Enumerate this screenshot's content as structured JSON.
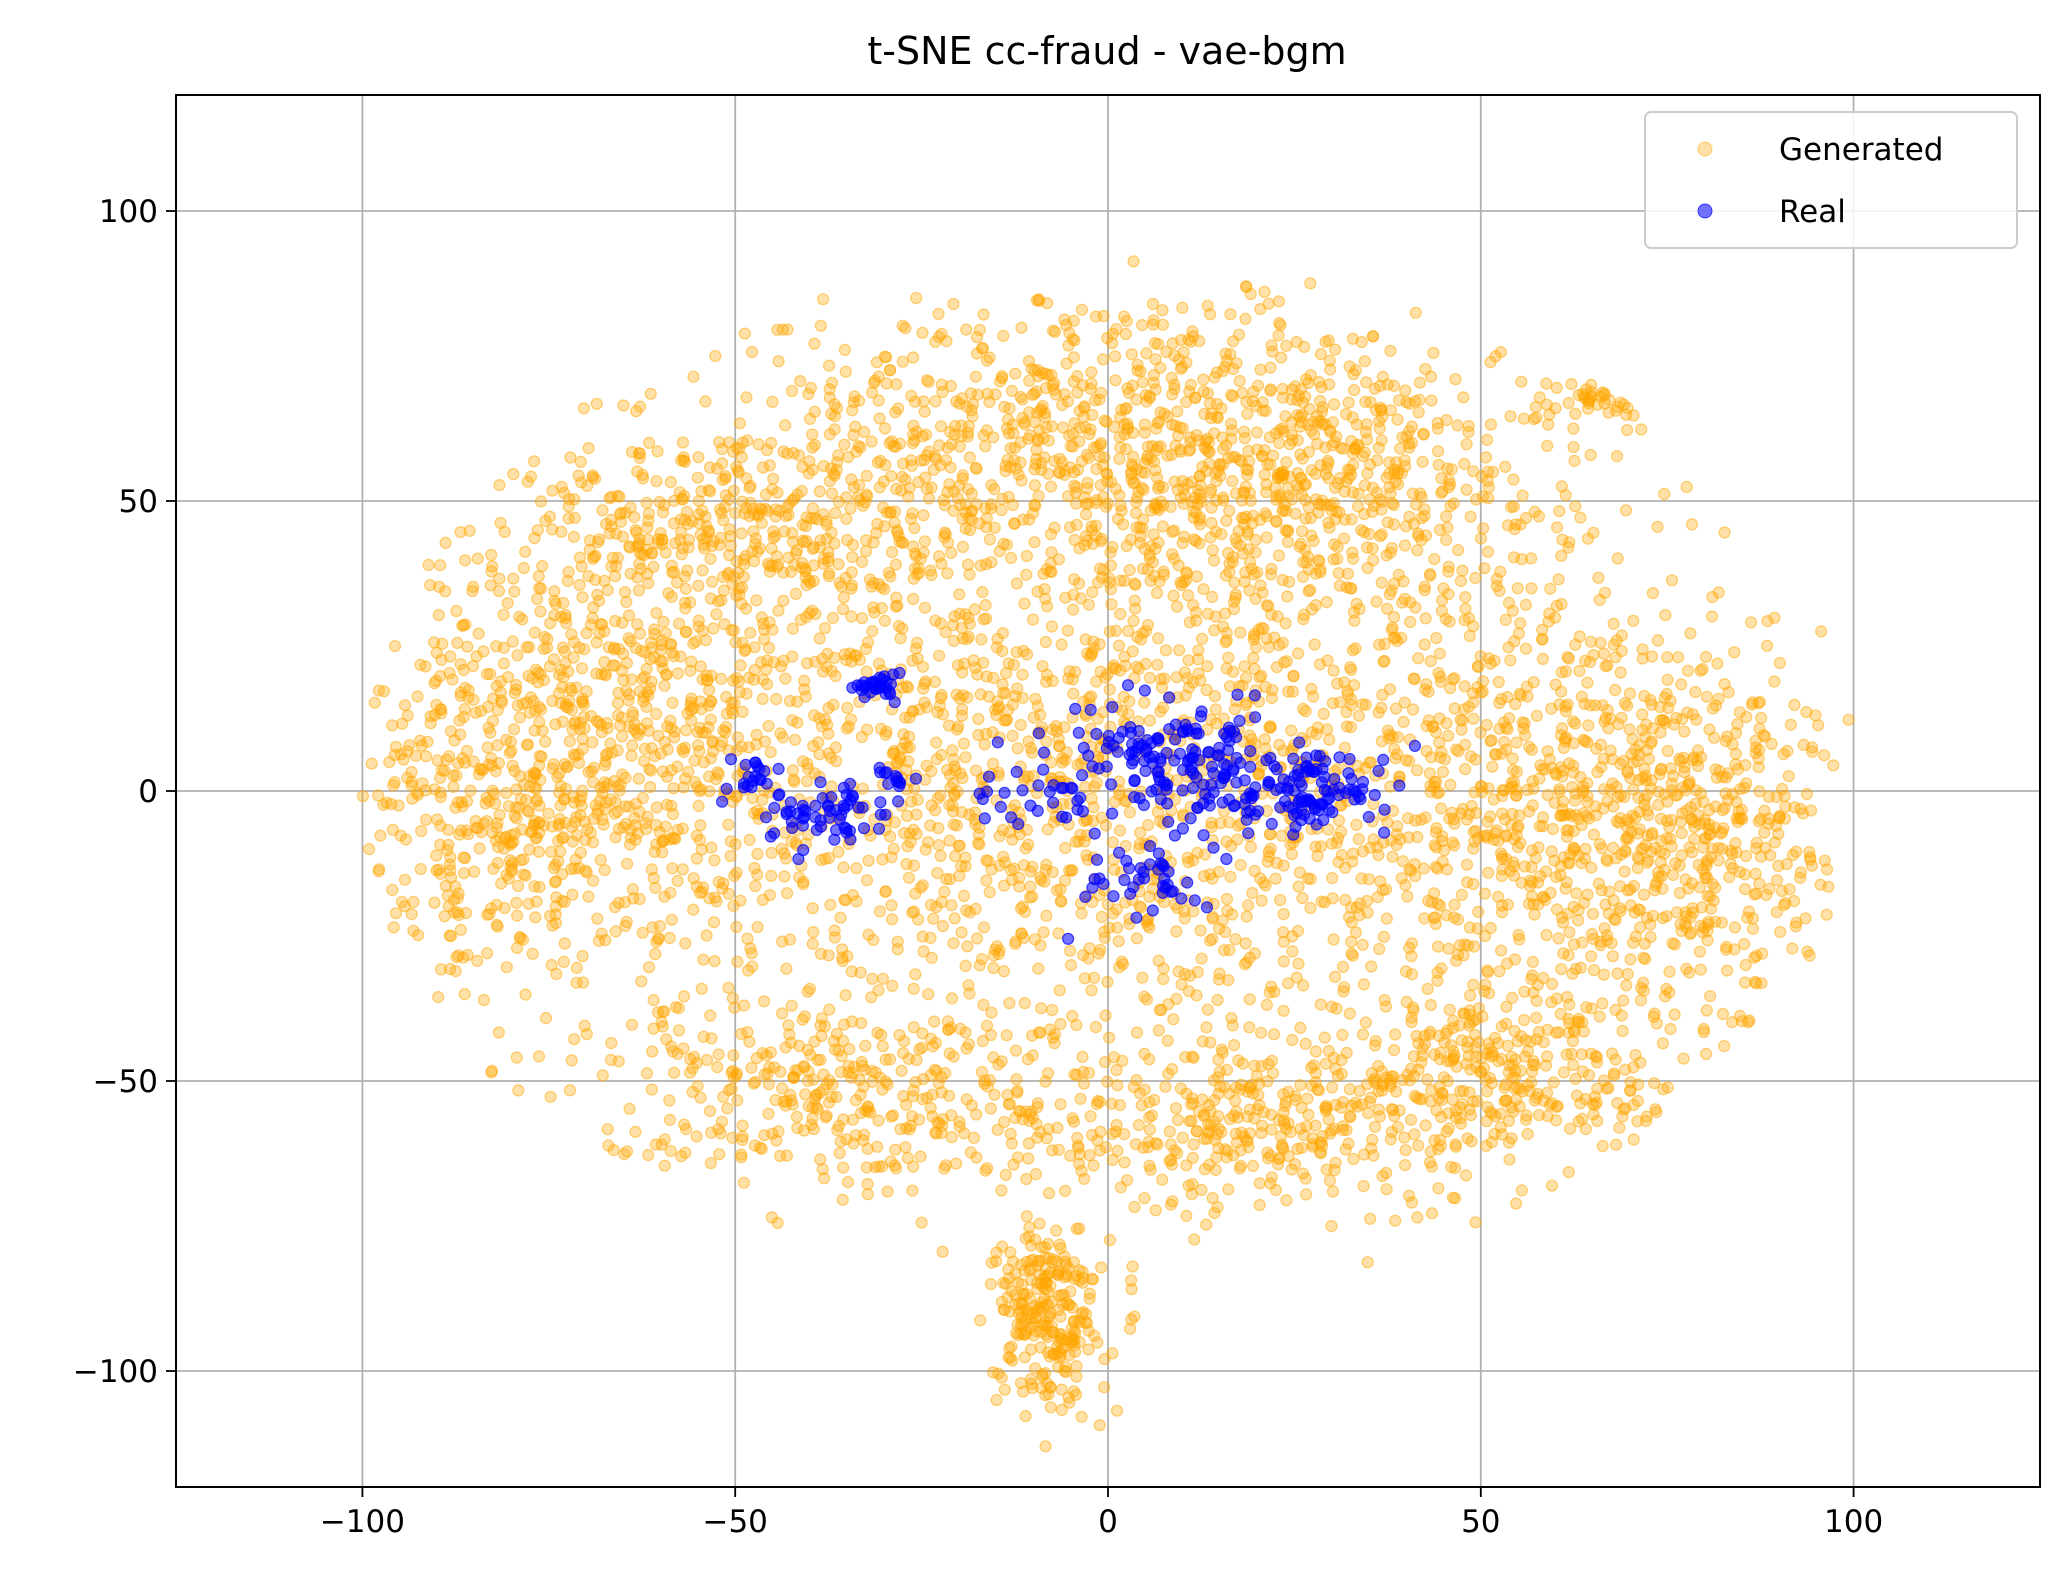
{
  "chart_data": {
    "type": "scatter",
    "title": "t-SNE cc-fraud - vae-bgm",
    "xlabel": "",
    "ylabel": "",
    "xlim": [
      -125,
      125
    ],
    "ylim": [
      -120,
      120
    ],
    "x_ticks": [
      -100,
      -50,
      0,
      50,
      100
    ],
    "x_tick_labels": [
      "−100",
      "−50",
      "0",
      "50",
      "100"
    ],
    "y_ticks": [
      -100,
      -50,
      0,
      50,
      100
    ],
    "y_tick_labels": [
      "−100",
      "−50",
      "0",
      "50",
      "100"
    ],
    "grid": true,
    "legend_position": "top-right",
    "series": [
      {
        "name": "Generated",
        "color": "#FFA500",
        "alpha": 0.35,
        "clusters": [
          {
            "cx": 0,
            "cy": 5,
            "sx": 38,
            "sy": 30,
            "n": 2200
          },
          {
            "cx": -68,
            "cy": 10,
            "sx": 18,
            "sy": 22,
            "n": 700
          },
          {
            "cx": -85,
            "cy": -5,
            "sx": 9,
            "sy": 14,
            "n": 200
          },
          {
            "cx": 65,
            "cy": -5,
            "sx": 15,
            "sy": 20,
            "n": 650
          },
          {
            "cx": 80,
            "cy": -10,
            "sx": 8,
            "sy": 12,
            "n": 200
          },
          {
            "cx": 0,
            "cy": 62,
            "sx": 24,
            "sy": 12,
            "n": 700
          },
          {
            "cx": -48,
            "cy": 45,
            "sx": 14,
            "sy": 10,
            "n": 300
          },
          {
            "cx": 30,
            "cy": 55,
            "sx": 14,
            "sy": 10,
            "n": 300
          },
          {
            "cx": -38,
            "cy": -52,
            "sx": 16,
            "sy": 8,
            "n": 300
          },
          {
            "cx": 20,
            "cy": -58,
            "sx": 18,
            "sy": 7,
            "n": 350
          },
          {
            "cx": 55,
            "cy": -48,
            "sx": 12,
            "sy": 8,
            "n": 250
          },
          {
            "cx": -8,
            "cy": -90,
            "sx": 3.5,
            "sy": 8,
            "n": 260
          },
          {
            "cx": 68,
            "cy": 68,
            "sx": 4,
            "sy": 2,
            "n": 80
          }
        ]
      },
      {
        "name": "Real",
        "color": "#0000FF",
        "alpha": 0.55,
        "clusters": [
          {
            "cx": 10,
            "cy": 4,
            "sx": 6,
            "sy": 4.5,
            "n": 140
          },
          {
            "cx": 27,
            "cy": 0,
            "sx": 5,
            "sy": 4,
            "n": 110
          },
          {
            "cx": -38,
            "cy": -4,
            "sx": 4,
            "sy": 2.5,
            "n": 60
          },
          {
            "cx": -47,
            "cy": 2,
            "sx": 2.5,
            "sy": 1.5,
            "n": 20
          },
          {
            "cx": -31,
            "cy": 18,
            "sx": 1.5,
            "sy": 1.2,
            "n": 30
          },
          {
            "cx": -29,
            "cy": 2,
            "sx": 1,
            "sy": 1,
            "n": 12
          },
          {
            "cx": 5,
            "cy": -15,
            "sx": 3.5,
            "sy": 3,
            "n": 40
          },
          {
            "cx": -8,
            "cy": 3,
            "sx": 5,
            "sy": 5,
            "n": 40
          },
          {
            "cx": -5.5,
            "cy": -25.5,
            "sx": 0.1,
            "sy": 0.1,
            "n": 1
          }
        ]
      }
    ]
  }
}
